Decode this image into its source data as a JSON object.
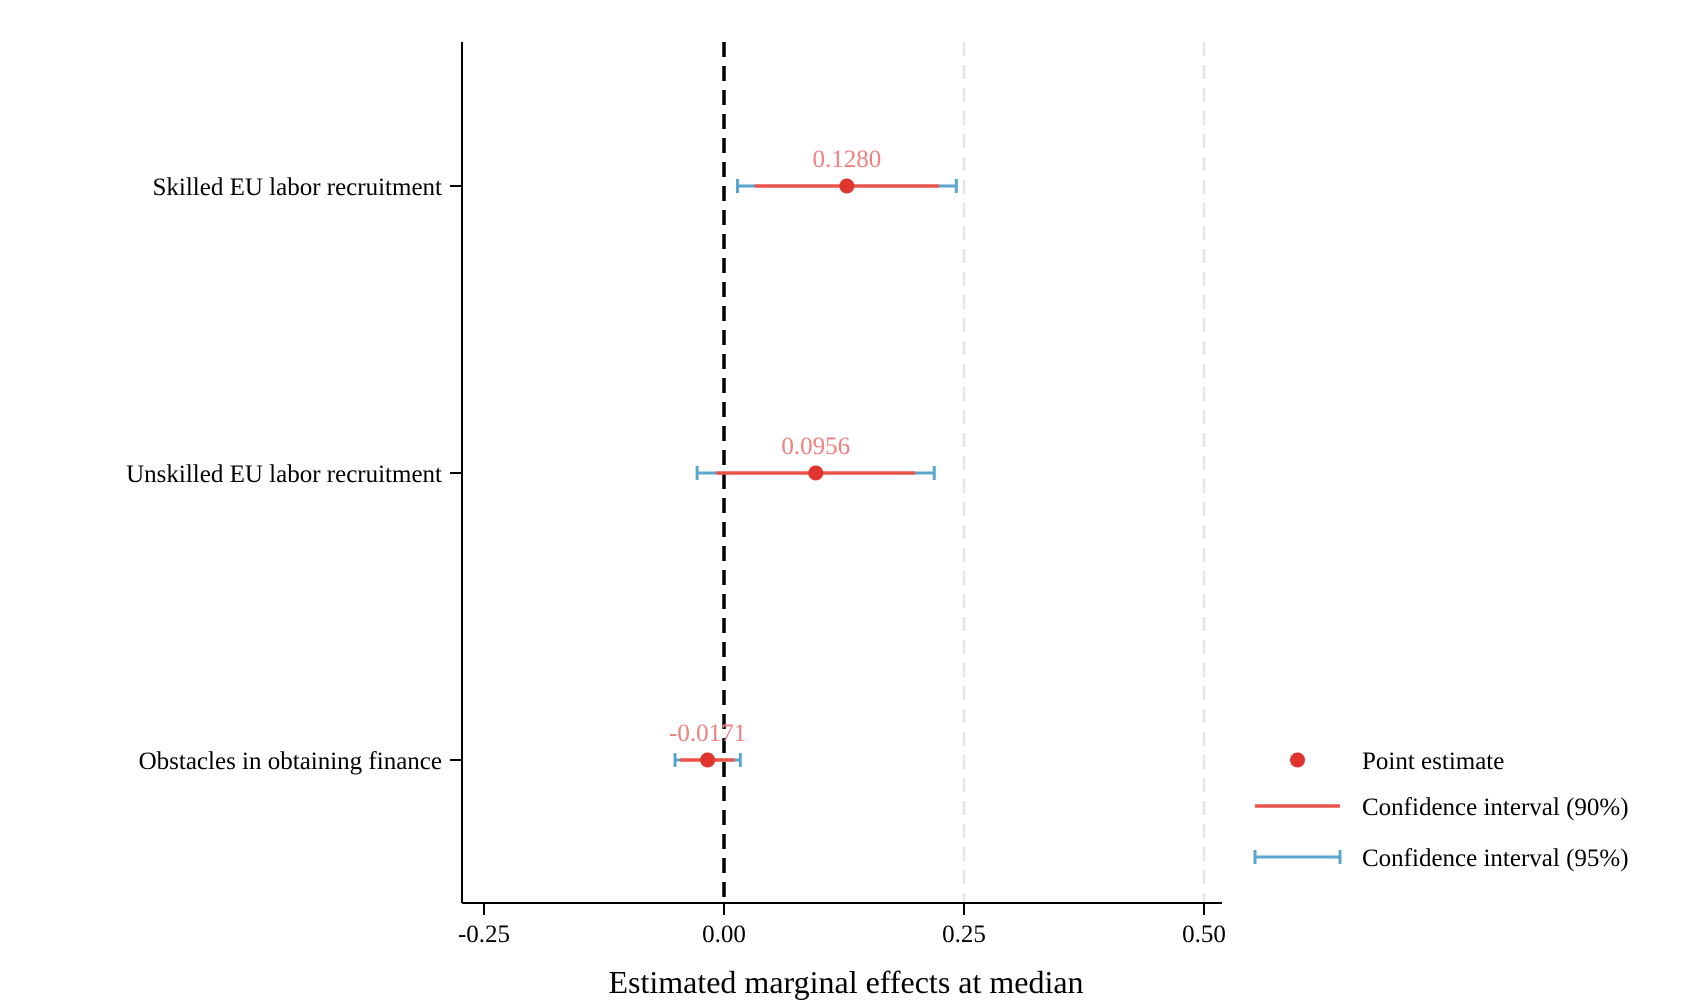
{
  "chart_data": {
    "type": "scatter",
    "orientation": "horizontal-dot-whisker",
    "title": "",
    "xlabel": "Estimated marginal effects at median",
    "ylabel": "",
    "xlim": [
      -0.275,
      0.52
    ],
    "xticks": [
      -0.25,
      0.0,
      0.25,
      0.5
    ],
    "xtick_labels": [
      "-0.25",
      "0.00",
      "0.25",
      "0.50"
    ],
    "grid": "vertical dashed light-gray at 0.25 and 0.50",
    "reference_line": {
      "x": 0.0,
      "style": "dashed black"
    },
    "categories": [
      "Skilled EU labor recruitment",
      "Unskilled EU labor recruitment",
      "Obstacles in obtaining finance"
    ],
    "series": [
      {
        "name": "Point estimate",
        "values": [
          0.128,
          0.0956,
          -0.0171
        ]
      },
      {
        "name": "Confidence interval (90%)",
        "lower": [
          0.032,
          -0.008,
          -0.046
        ],
        "upper": [
          0.224,
          0.199,
          0.011
        ]
      },
      {
        "name": "Confidence interval (95%)",
        "lower": [
          0.014,
          -0.028,
          -0.051
        ],
        "upper": [
          0.242,
          0.219,
          0.017
        ]
      }
    ],
    "data_labels": [
      "0.1280",
      "0.0956",
      "-0.0171"
    ],
    "legend": {
      "placement": "bottom-right outside",
      "entries": [
        "Point estimate",
        "Confidence interval (90%)",
        "Confidence interval (95%)"
      ]
    },
    "colors": {
      "point": "#e0352f",
      "ci90": "#e8534a",
      "ci95": "#5aa6cc",
      "data_label": "#f08080",
      "grid": "#e6e6e6",
      "axis": "#000000"
    }
  }
}
